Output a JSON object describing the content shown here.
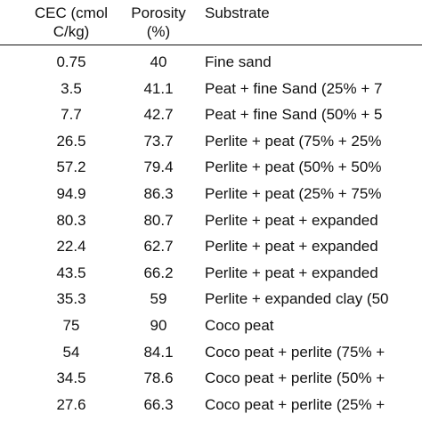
{
  "table": {
    "headers": {
      "cec_line1": "CEC (cmol",
      "cec_line2": "C/kg)",
      "porosity_line1": "Porosity",
      "porosity_line2": "(%)",
      "substrate": "Substrate"
    },
    "rows": [
      {
        "cec": "0.75",
        "porosity": "40",
        "substrate": "Fine sand"
      },
      {
        "cec": "3.5",
        "porosity": "41.1",
        "substrate": "Peat + fine Sand (25% + 7"
      },
      {
        "cec": "7.7",
        "porosity": "42.7",
        "substrate": "Peat + fine Sand (50% + 5"
      },
      {
        "cec": "26.5",
        "porosity": "73.7",
        "substrate": "Perlite + peat (75% + 25%"
      },
      {
        "cec": "57.2",
        "porosity": "79.4",
        "substrate": "Perlite + peat (50% + 50%"
      },
      {
        "cec": "94.9",
        "porosity": "86.3",
        "substrate": "Perlite + peat (25% + 75%"
      },
      {
        "cec": "80.3",
        "porosity": "80.7",
        "substrate": "Perlite + peat + expanded"
      },
      {
        "cec": "22.4",
        "porosity": "62.7",
        "substrate": "Perlite + peat + expanded"
      },
      {
        "cec": "43.5",
        "porosity": "66.2",
        "substrate": "Perlite + peat + expanded"
      },
      {
        "cec": "35.3",
        "porosity": "59",
        "substrate": "Perlite + expanded clay (50"
      },
      {
        "cec": "75",
        "porosity": "90",
        "substrate": "Coco peat"
      },
      {
        "cec": "54",
        "porosity": "84.1",
        "substrate": "Coco peat + perlite (75% +"
      },
      {
        "cec": "34.5",
        "porosity": "78.6",
        "substrate": "Coco peat + perlite (50% +"
      },
      {
        "cec": "27.6",
        "porosity": "66.3",
        "substrate": "Coco peat + perlite (25% +"
      }
    ]
  }
}
